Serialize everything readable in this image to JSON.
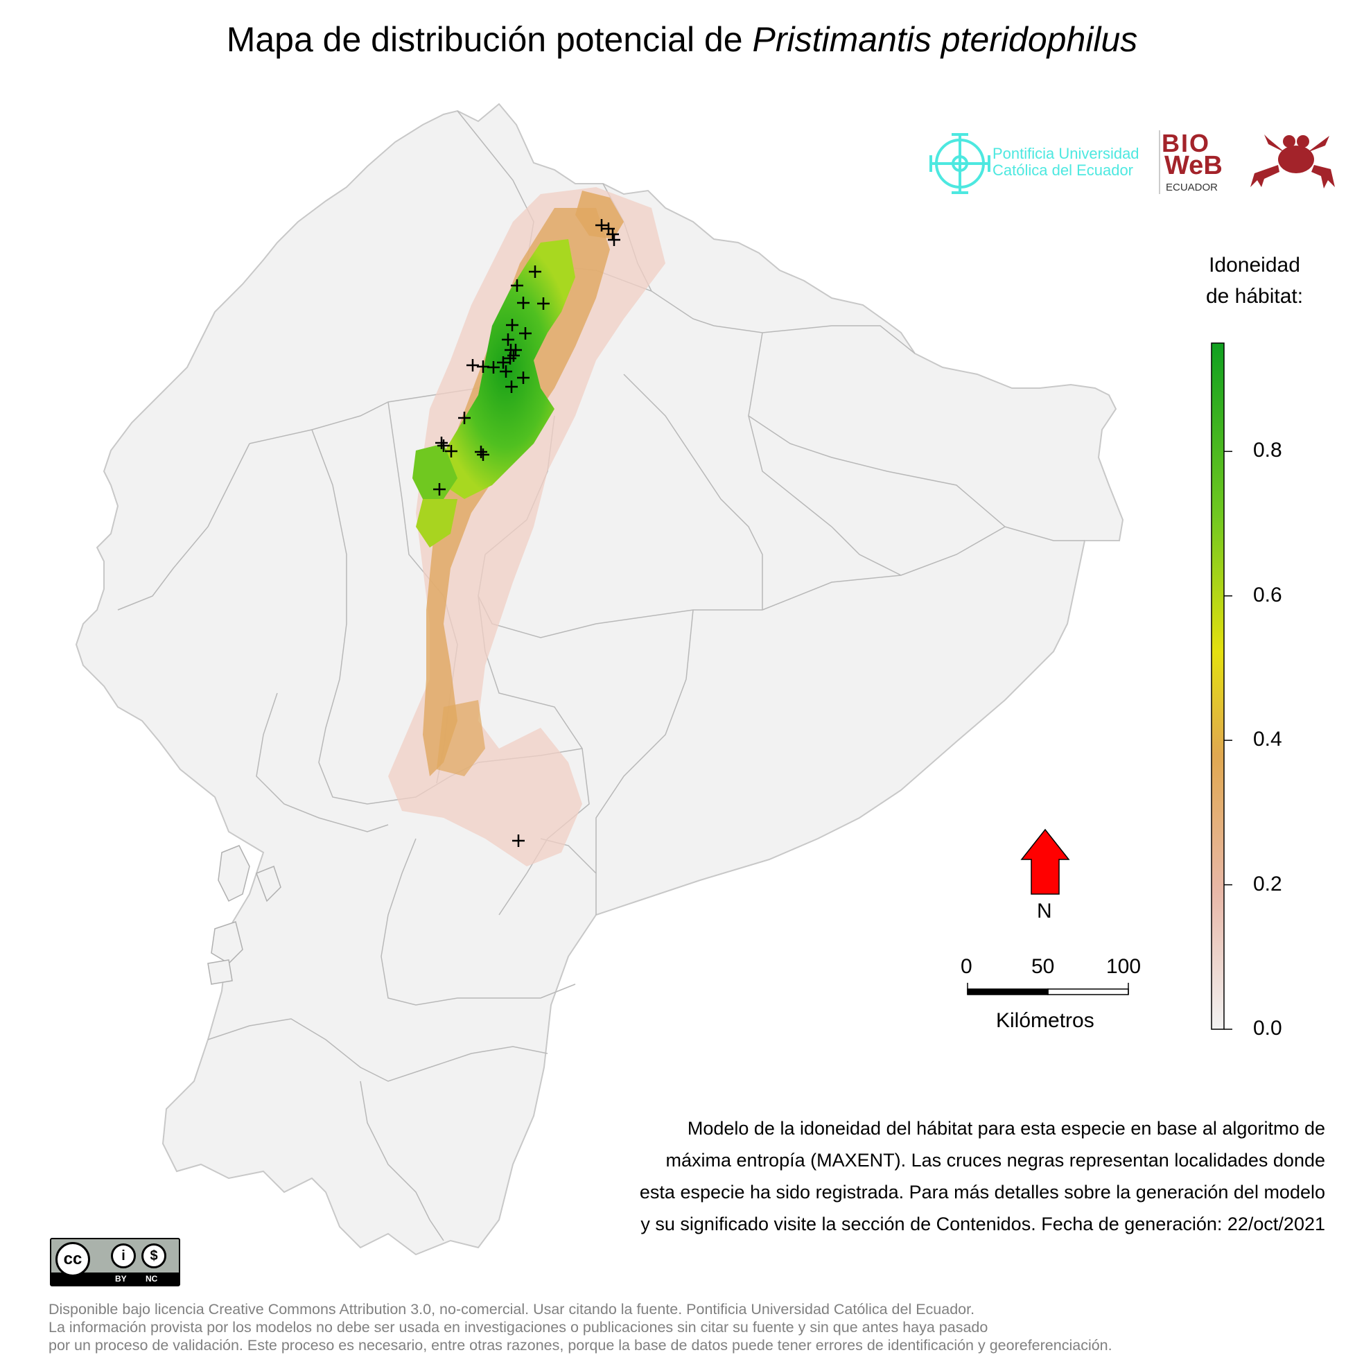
{
  "title": {
    "prefix": "Mapa de distribución potencial de ",
    "species": "Pristimantis pteridophilus"
  },
  "logos": {
    "puce_line1": "Pontificia Universidad",
    "puce_line2": "Católica del Ecuador",
    "bioweb_top": "BIO",
    "bioweb_mid": "WeB",
    "bioweb_bottom": "ECUADOR",
    "puce_color": "#4de8e0",
    "bioweb_color": "#a3232a"
  },
  "legend": {
    "title_line1": "Idoneidad",
    "title_line2": "de hábitat:",
    "ticks": [
      "0.0",
      "0.2",
      "0.4",
      "0.6",
      "0.8"
    ],
    "range": [
      0,
      0.95
    ],
    "colors": [
      "#f2f2f2",
      "#e8b8a8",
      "#e0a860",
      "#e0e020",
      "#80d020",
      "#10a020"
    ]
  },
  "north_arrow": {
    "label": "N",
    "color": "#ff0000"
  },
  "scale_bar": {
    "labels": [
      "0",
      "50",
      "100"
    ],
    "unit": "Kilómetros"
  },
  "caption": [
    "Modelo de la idoneidad del hábitat para esta especie en base al algoritmo de",
    "máxima entropía (MAXENT). Las cruces negras representan localidades donde",
    "esta especie ha sido registrada. Para más detalles sobre la generación del modelo",
    "y su significado visite la sección de Contenidos. Fecha de generación: 22/oct/2021"
  ],
  "cc_badge": {
    "by": "BY",
    "nc": "NC"
  },
  "license": [
    "Disponible bajo licencia Creative Commons Attribution 3.0, no-comercial. Usar citando la fuente. Pontificia Universidad Católica del Ecuador.",
    "La información provista por los modelos no debe ser usada en investigaciones o publicaciones sin citar su fuente y sin que antes haya pasado",
    "por un proceso de validación. Este proceso es necesario, entre otras razones, porque la base de datos puede tener errores de identificación y georeferenciación."
  ]
}
